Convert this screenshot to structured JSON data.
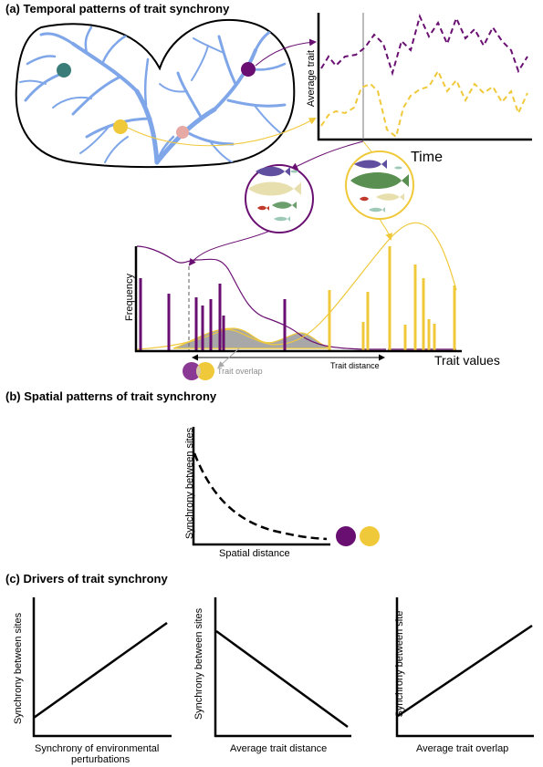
{
  "panel_a": {
    "title": "(a) Temporal patterns of trait synchrony",
    "ts_ylabel": "Average trait",
    "ts_xlabel": "Time",
    "hist_ylabel": "Frequency",
    "hist_xlabel": "Trait values",
    "trait_overlap": "Trait overlap",
    "trait_distance": "Trait distance"
  },
  "panel_b": {
    "title": "(b) Spatial patterns of trait synchrony",
    "ylabel": "Synchrony between sites",
    "xlabel": "Spatial distance"
  },
  "panel_c": {
    "title": "(c) Drivers of trait synchrony",
    "plot1": {
      "ylabel": "Synchrony between sites",
      "xlabel_line1": "Synchrony of environmental",
      "xlabel_line2": "perturbations"
    },
    "plot2": {
      "ylabel": "Synchrony between sites",
      "xlabel": "Average trait distance"
    },
    "plot3": {
      "ylabel": "Synchrony between site",
      "xlabel": "Average trait overlap"
    }
  },
  "colors": {
    "purple": "#6a0f72",
    "yellow": "#f0c93a",
    "teal": "#3a7d78",
    "pink": "#e7a9a4",
    "river": "#7fa6e8",
    "overlap": "#a8a8a8"
  }
}
